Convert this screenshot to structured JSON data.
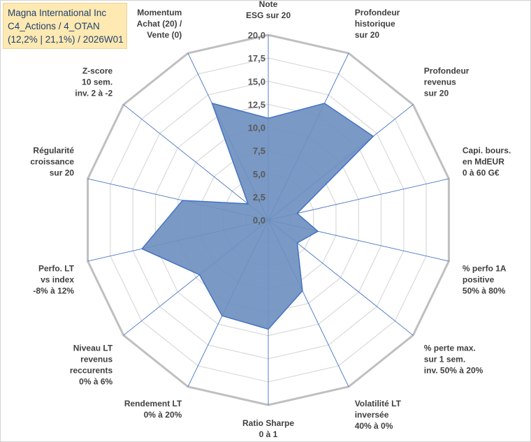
{
  "title": {
    "company": "Magna International Inc",
    "portfolio": "C4_Actions / 4_OTAN",
    "stats": "(12,2% | 21,1%) / 2026W01"
  },
  "colors": {
    "fill": "#6f90c0",
    "stroke": "#4472c4",
    "spoke": "#4472c4",
    "grid": "#d9d9d9",
    "outer": "#bfbfbf",
    "title_bg": "#fde9b1",
    "title_text": "#1f3f6e"
  },
  "chart_data": {
    "type": "radar",
    "title": "Magna International Inc",
    "rmin": 0,
    "rmax": 20,
    "tick_step": 2.5,
    "tick_labels": [
      "0,0",
      "2,5",
      "5,0",
      "7,5",
      "10,0",
      "12,5",
      "15,0",
      "17,5",
      "20,0"
    ],
    "axes": [
      {
        "label": [
          "Note",
          "ESG sur 20"
        ],
        "value": 11
      },
      {
        "label": [
          "Profondeur",
          "historique",
          "sur 20"
        ],
        "value": 14
      },
      {
        "label": [
          "Profondeur",
          "revenus",
          "sur 20"
        ],
        "value": 14.5
      },
      {
        "label": [
          "Capi. bours.",
          "en MdEUR",
          "0 à 60 G€"
        ],
        "value": 3.2
      },
      {
        "label": [
          "% perfo 1A",
          "positive",
          "50% à 80%"
        ],
        "value": 5.5
      },
      {
        "label": [
          "% perte max.",
          "sur 1 sem.",
          "inv. 50% à 20%"
        ],
        "value": 4
      },
      {
        "label": [
          "Volatilité LT",
          "inversée",
          "40% à 0%"
        ],
        "value": 8.5
      },
      {
        "label": [
          "Ratio Sharpe",
          "0 à 1"
        ],
        "value": 11.8
      },
      {
        "label": [
          "Rendement LT",
          "0% à 20%"
        ],
        "value": 11.5
      },
      {
        "label": [
          "Niveau LT",
          "revenus",
          "reccurents",
          "0% à 6%"
        ],
        "value": 9.5
      },
      {
        "label": [
          "Perfo. LT",
          "vs index",
          "-8% à 12%"
        ],
        "value": 14
      },
      {
        "label": [
          "Régularité",
          "croissance",
          "sur 20"
        ],
        "value": 9.5
      },
      {
        "label": [
          "Z-score",
          "10 sem.",
          "inv. 2 à -2"
        ],
        "value": 2.8
      },
      {
        "label": [
          "Momentum",
          "Achat (20) /",
          "Vente (0)"
        ],
        "value": 14
      }
    ]
  }
}
